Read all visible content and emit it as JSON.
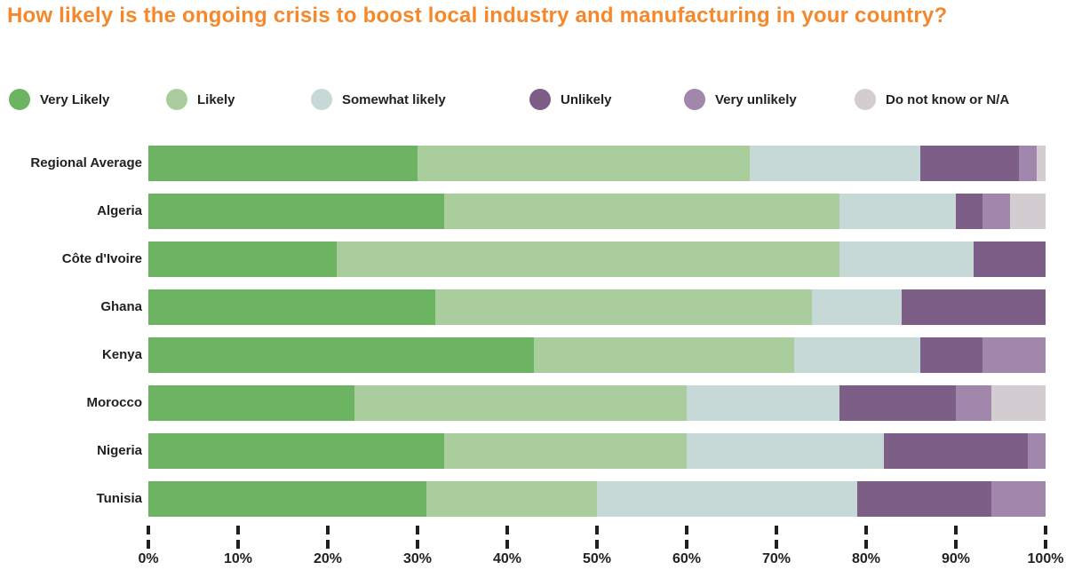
{
  "title": "How likely is the ongoing crisis to boost local industry and manufacturing in your country?",
  "title_color": "#F6882B",
  "text_color": "#231F20",
  "chart_data": {
    "type": "bar",
    "orientation": "horizontal",
    "stacked": true,
    "unit": "%",
    "xlim": [
      0,
      100
    ],
    "x_ticks": [
      "0%",
      "10%",
      "20%",
      "30%",
      "40%",
      "50%",
      "60%",
      "70%",
      "80%",
      "90%",
      "100%"
    ],
    "legend_position": "top",
    "grid": "dashed tick marks below axis only",
    "categories": [
      "Regional Average",
      "Algeria",
      "Côte d'Ivoire",
      "Ghana",
      "Kenya",
      "Morocco",
      "Nigeria",
      "Tunisia"
    ],
    "series": [
      {
        "name": "Very Likely",
        "color": "#6CB462",
        "values": [
          30,
          33,
          21,
          32,
          43,
          23,
          33,
          31
        ]
      },
      {
        "name": "Likely",
        "color": "#A9CD9D",
        "values": [
          37,
          44,
          56,
          42,
          29,
          37,
          27,
          19
        ]
      },
      {
        "name": "Somewhat likely",
        "color": "#C7D9D6",
        "values": [
          19,
          13,
          15,
          10,
          14,
          17,
          22,
          29
        ]
      },
      {
        "name": "Unlikely",
        "color": "#7D5E86",
        "values": [
          11,
          3,
          8,
          16,
          7,
          13,
          16,
          15
        ]
      },
      {
        "name": "Very unlikely",
        "color": "#A287AD",
        "values": [
          2,
          3,
          0,
          0,
          7,
          4,
          2,
          6
        ]
      },
      {
        "name": "Do not know or N/A",
        "color": "#D3CDD1",
        "values": [
          1,
          4,
          0,
          0,
          0,
          6,
          0,
          0
        ]
      }
    ]
  }
}
